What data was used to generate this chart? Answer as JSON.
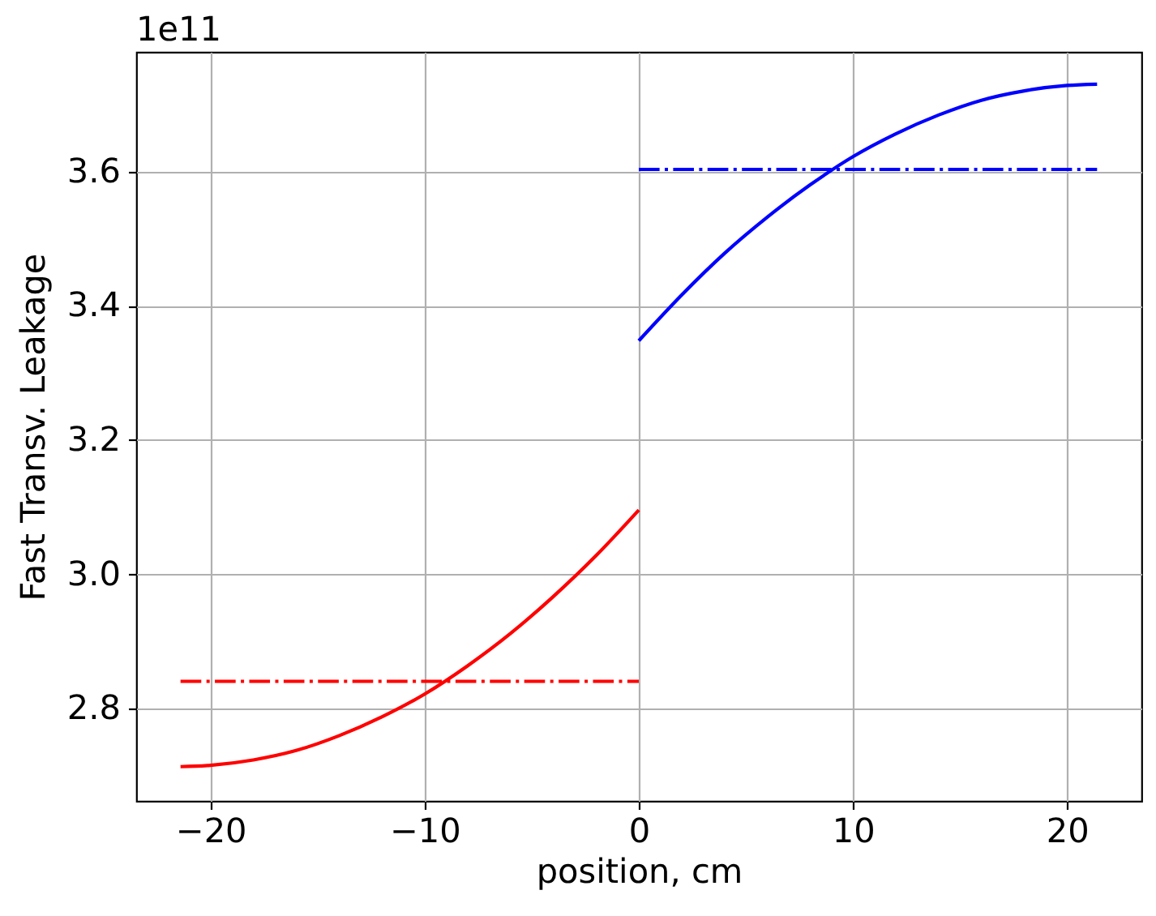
{
  "chart_data": {
    "type": "line",
    "xlabel": "position, cm",
    "ylabel": "Fast Transv. Leakage",
    "annotations": [
      "1e11"
    ],
    "xlim": [
      -23.47,
      23.47
    ],
    "xticks": [
      -20,
      -10,
      0,
      10,
      20
    ],
    "ylim": [
      2.663,
      3.778
    ],
    "yticks": [
      2.8,
      {
        "value": 3,
        "label": "3.0"
      },
      3.2,
      3.4,
      3.6
    ],
    "grid": true,
    "series": [
      {
        "color": "#ff0000",
        "line_style": "solid",
        "x": [
          -21.4,
          -20,
          -18,
          -16,
          -14,
          -12,
          -10,
          -8,
          -6,
          -4,
          -2,
          0
        ],
        "values": [
          2.714,
          2.716,
          2.724,
          2.738,
          2.76,
          2.788,
          2.822,
          2.864,
          2.912,
          2.967,
          3.028,
          3.096
        ]
      },
      {
        "color": "#ff0000",
        "line_style": "dashdot",
        "x": [
          -21.4,
          0
        ],
        "values": [
          2.841,
          2.841
        ]
      },
      {
        "color": "#0000ff",
        "line_style": "solid",
        "x": [
          0,
          2,
          4,
          6,
          8,
          10,
          12,
          14,
          16,
          18,
          20,
          21.4
        ],
        "values": [
          3.348,
          3.416,
          3.478,
          3.532,
          3.58,
          3.622,
          3.656,
          3.684,
          3.706,
          3.72,
          3.728,
          3.73
        ]
      },
      {
        "color": "#0000ff",
        "line_style": "dashdot",
        "x": [
          0,
          21.4
        ],
        "values": [
          3.603,
          3.603
        ]
      }
    ]
  }
}
